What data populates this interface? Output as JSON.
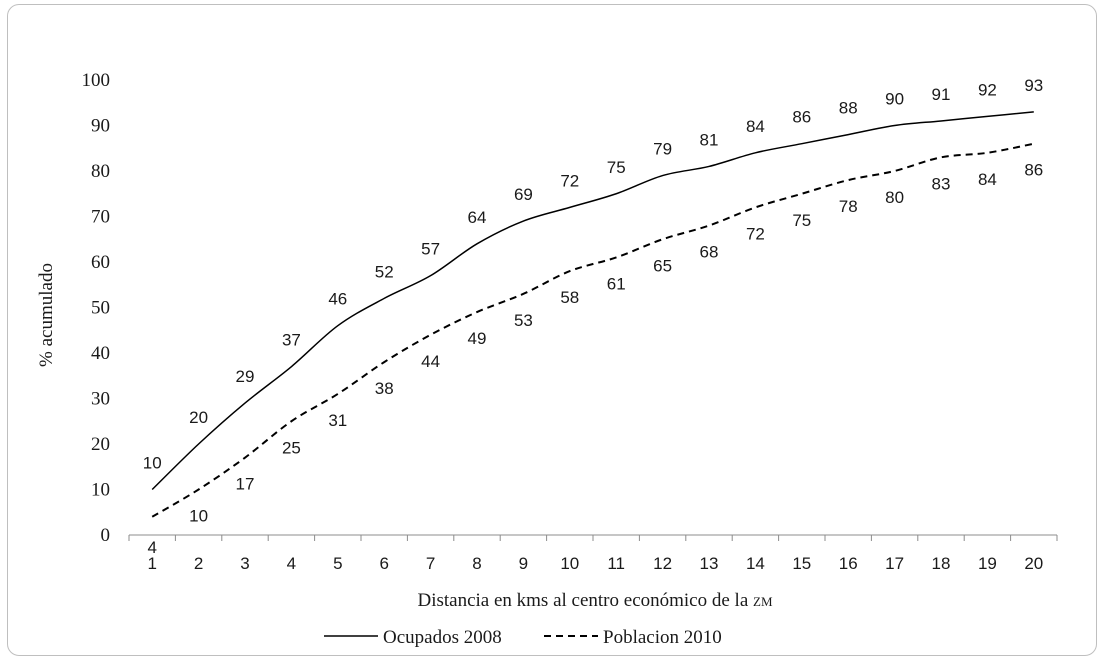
{
  "chart_data": {
    "type": "line",
    "x": [
      1,
      2,
      3,
      4,
      5,
      6,
      7,
      8,
      9,
      10,
      11,
      12,
      13,
      14,
      15,
      16,
      17,
      18,
      19,
      20
    ],
    "series": [
      {
        "name": "Ocupados 2008",
        "style": "solid",
        "values": [
          10,
          20,
          29,
          37,
          46,
          52,
          57,
          64,
          69,
          72,
          75,
          79,
          81,
          84,
          86,
          88,
          90,
          91,
          92,
          93
        ]
      },
      {
        "name": "Poblacion 2010",
        "style": "dashed",
        "values": [
          4,
          10,
          17,
          25,
          31,
          38,
          44,
          49,
          53,
          58,
          61,
          65,
          68,
          72,
          75,
          78,
          80,
          83,
          84,
          86
        ]
      }
    ],
    "title": "",
    "xlabel_main": "Distancia en kms al centro económico de la ",
    "xlabel_abbr": "ZM",
    "ylabel": "% acumulado",
    "ylim": [
      0,
      100
    ],
    "yticks": [
      0,
      10,
      20,
      30,
      40,
      50,
      60,
      70,
      80,
      90,
      100
    ],
    "grid": false,
    "legend_position": "bottom",
    "line_color": "#000000"
  }
}
